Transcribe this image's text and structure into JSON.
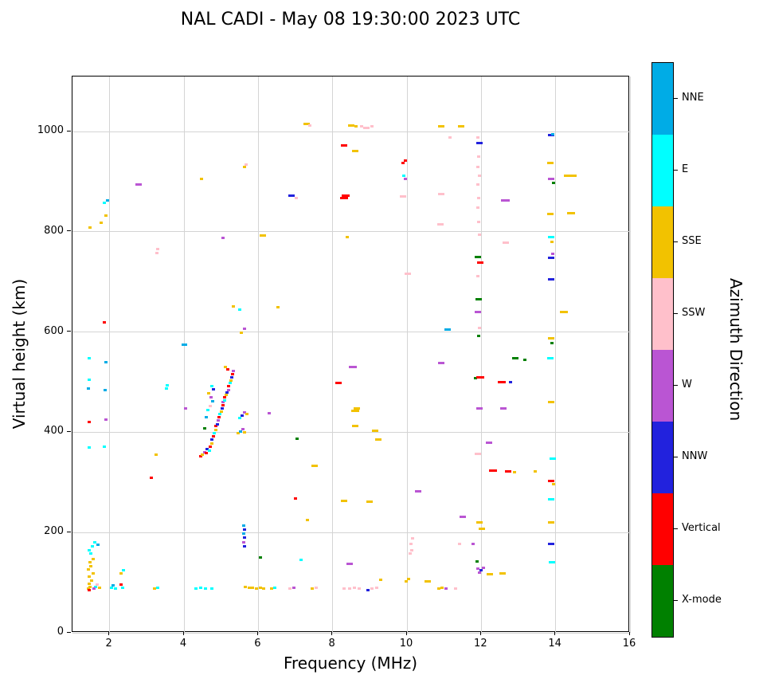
{
  "title": "NAL CADI - May 08 19:30:00 2023 UTC",
  "chart_data": {
    "type": "scatter",
    "title": "NAL CADI - May 08 19:30:00 2023 UTC",
    "xlabel": "Frequency (MHz)",
    "ylabel": "Virtual height (km)",
    "xlim": [
      1.0,
      16.0
    ],
    "ylim": [
      0,
      1110
    ],
    "xticks": [
      2,
      4,
      6,
      8,
      10,
      12,
      14,
      16
    ],
    "yticks": [
      0,
      200,
      400,
      600,
      800,
      1000
    ],
    "grid": true,
    "legend_position": "right-colorbar",
    "colorbar": {
      "label": "Azimuth Direction",
      "segments_bottom_to_top": [
        "X-mode",
        "Vertical",
        "NNW",
        "W",
        "SSW",
        "SSE",
        "E",
        "NNE"
      ],
      "colors": {
        "NNE": "#00ACE6",
        "E": "#00FFFF",
        "SSE": "#F2C200",
        "SSW": "#FFC0CB",
        "W": "#BA55D3",
        "NNW": "#2222DD",
        "Vertical": "#FF0000",
        "X-mode": "#008000"
      }
    },
    "point_codes": {
      "NNE": "NNE",
      "E": "E",
      "SSE": "SSE",
      "SSW": "SSW",
      "W": "W",
      "NNW": "NNW",
      "V": "Vertical",
      "X": "X-mode"
    },
    "points": [
      [
        1.42,
        88,
        "SSE"
      ],
      [
        1.48,
        92,
        "SSE"
      ],
      [
        1.45,
        98,
        "SSE"
      ],
      [
        1.52,
        104,
        "SSE"
      ],
      [
        1.46,
        112,
        "SSE"
      ],
      [
        1.55,
        118,
        "SSE"
      ],
      [
        1.43,
        126,
        "SSE"
      ],
      [
        1.5,
        133,
        "SSE"
      ],
      [
        1.47,
        140,
        "SSE"
      ],
      [
        1.56,
        147,
        "SSE"
      ],
      [
        1.62,
        92,
        "E"
      ],
      [
        1.58,
        88,
        "W"
      ],
      [
        1.44,
        85,
        "V"
      ],
      [
        1.66,
        96,
        "SSW"
      ],
      [
        1.72,
        90,
        "SSE"
      ],
      [
        1.5,
        158,
        "E"
      ],
      [
        1.46,
        165,
        "E"
      ],
      [
        1.53,
        172,
        "E"
      ],
      [
        1.6,
        180,
        "E"
      ],
      [
        1.68,
        176,
        "NNE"
      ],
      [
        1.45,
        370,
        "E"
      ],
      [
        1.85,
        372,
        "E"
      ],
      [
        1.44,
        420,
        "V"
      ],
      [
        1.9,
        425,
        "W"
      ],
      [
        1.42,
        488,
        "NNE"
      ],
      [
        1.88,
        485,
        "NNE"
      ],
      [
        1.46,
        505,
        "E"
      ],
      [
        1.9,
        540,
        "NNE"
      ],
      [
        1.44,
        548,
        "E"
      ],
      [
        1.86,
        620,
        "V"
      ],
      [
        1.48,
        808,
        "SSE"
      ],
      [
        1.78,
        818,
        "SSE"
      ],
      [
        1.9,
        832,
        "SSE"
      ],
      [
        1.86,
        858,
        "E"
      ],
      [
        1.95,
        862,
        "NNE"
      ],
      [
        2.05,
        90,
        "E"
      ],
      [
        2.1,
        95,
        "NNE"
      ],
      [
        2.16,
        88,
        "E"
      ],
      [
        2.3,
        96,
        "V"
      ],
      [
        2.34,
        90,
        "E"
      ],
      [
        2.3,
        118,
        "SSE"
      ],
      [
        2.38,
        125,
        "E"
      ],
      [
        2.78,
        895,
        "W",
        8
      ],
      [
        3.12,
        310,
        "V"
      ],
      [
        3.25,
        355,
        "SSE"
      ],
      [
        3.2,
        88,
        "SSE"
      ],
      [
        3.3,
        90,
        "E"
      ],
      [
        3.28,
        758,
        "SSW"
      ],
      [
        3.3,
        765,
        "SSW"
      ],
      [
        3.52,
        488,
        "E"
      ],
      [
        3.56,
        494,
        "E"
      ],
      [
        4.02,
        575,
        "NNE",
        7
      ],
      [
        4.05,
        448,
        "W"
      ],
      [
        4.32,
        88,
        "E"
      ],
      [
        4.45,
        90,
        "E"
      ],
      [
        4.58,
        88,
        "E"
      ],
      [
        4.75,
        88,
        "E"
      ],
      [
        4.48,
        905,
        "SSE"
      ],
      [
        4.45,
        352,
        "V"
      ],
      [
        4.5,
        356,
        "SSE"
      ],
      [
        4.55,
        360,
        "W"
      ],
      [
        4.6,
        358,
        "V"
      ],
      [
        4.62,
        366,
        "NNW"
      ],
      [
        4.68,
        364,
        "E"
      ],
      [
        4.7,
        372,
        "V"
      ],
      [
        4.74,
        378,
        "SSE"
      ],
      [
        4.76,
        386,
        "NNW"
      ],
      [
        4.8,
        392,
        "V"
      ],
      [
        4.82,
        398,
        "E"
      ],
      [
        4.85,
        404,
        "SSE"
      ],
      [
        4.86,
        412,
        "V"
      ],
      [
        4.9,
        416,
        "NNW"
      ],
      [
        4.92,
        424,
        "W"
      ],
      [
        4.95,
        430,
        "V"
      ],
      [
        4.96,
        436,
        "E"
      ],
      [
        5.0,
        442,
        "SSE"
      ],
      [
        5.02,
        448,
        "NNW"
      ],
      [
        5.05,
        454,
        "V"
      ],
      [
        5.06,
        460,
        "W"
      ],
      [
        5.1,
        464,
        "E"
      ],
      [
        5.1,
        470,
        "V"
      ],
      [
        5.14,
        474,
        "SSE"
      ],
      [
        5.16,
        480,
        "NNW"
      ],
      [
        5.2,
        484,
        "W"
      ],
      [
        5.2,
        492,
        "V"
      ],
      [
        5.24,
        498,
        "E"
      ],
      [
        5.26,
        504,
        "SSE"
      ],
      [
        5.28,
        510,
        "NNW"
      ],
      [
        5.3,
        516,
        "V"
      ],
      [
        5.33,
        522,
        "W"
      ],
      [
        5.18,
        526,
        "V"
      ],
      [
        5.12,
        530,
        "SSE"
      ],
      [
        4.55,
        408,
        "X"
      ],
      [
        4.6,
        430,
        "NNE"
      ],
      [
        4.65,
        445,
        "E"
      ],
      [
        4.7,
        452,
        "SSW"
      ],
      [
        4.78,
        462,
        "NNE"
      ],
      [
        4.72,
        470,
        "W"
      ],
      [
        4.66,
        478,
        "SSE"
      ],
      [
        4.8,
        486,
        "NNW"
      ],
      [
        4.74,
        492,
        "E"
      ],
      [
        5.45,
        398,
        "SSE"
      ],
      [
        5.52,
        402,
        "NNE"
      ],
      [
        5.58,
        406,
        "W"
      ],
      [
        5.63,
        400,
        "SSE"
      ],
      [
        5.5,
        428,
        "E"
      ],
      [
        5.56,
        434,
        "NNW"
      ],
      [
        5.62,
        440,
        "W"
      ],
      [
        5.7,
        436,
        "SSE"
      ],
      [
        5.62,
        172,
        "NNW"
      ],
      [
        5.6,
        180,
        "W"
      ],
      [
        5.63,
        190,
        "NNW"
      ],
      [
        5.61,
        198,
        "NNE"
      ],
      [
        5.62,
        206,
        "NNW"
      ],
      [
        5.6,
        214,
        "NNE"
      ],
      [
        6.05,
        150,
        "X"
      ],
      [
        5.95,
        88,
        "SSE"
      ],
      [
        5.85,
        90,
        "SSE"
      ],
      [
        5.75,
        90,
        "SSE"
      ],
      [
        5.65,
        92,
        "SSE"
      ],
      [
        6.05,
        90,
        "SSE"
      ],
      [
        6.15,
        88,
        "SSE"
      ],
      [
        6.35,
        88,
        "SSE"
      ],
      [
        6.45,
        90,
        "E"
      ],
      [
        6.85,
        88,
        "SSW"
      ],
      [
        6.95,
        90,
        "W"
      ],
      [
        7.15,
        145,
        "E"
      ],
      [
        5.55,
        598,
        "SSE"
      ],
      [
        5.62,
        606,
        "W"
      ],
      [
        5.5,
        645,
        "E"
      ],
      [
        5.32,
        652,
        "SSE"
      ],
      [
        5.05,
        788,
        "W"
      ],
      [
        5.62,
        930,
        "SSE"
      ],
      [
        5.68,
        935,
        "SSW"
      ],
      [
        6.12,
        792,
        "SSE",
        8
      ],
      [
        6.52,
        650,
        "SSE"
      ],
      [
        6.3,
        438,
        "W"
      ],
      [
        6.9,
        872,
        "NNW",
        8
      ],
      [
        7.02,
        868,
        "SSW"
      ],
      [
        7.3,
        1015,
        "SSE",
        8
      ],
      [
        7.38,
        1012,
        "SSW"
      ],
      [
        7.0,
        268,
        "V"
      ],
      [
        7.05,
        388,
        "X"
      ],
      [
        7.32,
        225,
        "SSE"
      ],
      [
        7.52,
        333,
        "SSE",
        8
      ],
      [
        7.45,
        88,
        "SSE"
      ],
      [
        7.55,
        90,
        "SSW"
      ],
      [
        8.15,
        498,
        "V",
        8
      ],
      [
        8.55,
        530,
        "W",
        10
      ],
      [
        8.3,
        263,
        "SSE",
        8
      ],
      [
        8.45,
        138,
        "W",
        8
      ],
      [
        8.3,
        868,
        "V",
        10
      ],
      [
        8.36,
        872,
        "V",
        10
      ],
      [
        8.3,
        973,
        "V",
        8
      ],
      [
        8.6,
        962,
        "SSE",
        8
      ],
      [
        8.5,
        1012,
        "SSE",
        8
      ],
      [
        8.62,
        1010,
        "SSE"
      ],
      [
        8.78,
        1010,
        "SSW"
      ],
      [
        8.9,
        1008,
        "SSW",
        8
      ],
      [
        9.05,
        1010,
        "SSW"
      ],
      [
        8.6,
        443,
        "SSE",
        10
      ],
      [
        8.66,
        448,
        "SSE",
        8
      ],
      [
        8.6,
        413,
        "SSE",
        8
      ],
      [
        8.4,
        790,
        "SSE"
      ],
      [
        9.15,
        403,
        "SSE",
        8
      ],
      [
        9.22,
        385,
        "SSE",
        8
      ],
      [
        9.0,
        262,
        "SSE",
        8
      ],
      [
        8.3,
        88,
        "SSW"
      ],
      [
        8.45,
        88,
        "SSW"
      ],
      [
        8.58,
        90,
        "SSW"
      ],
      [
        8.72,
        88,
        "SSW"
      ],
      [
        8.95,
        85,
        "NNW"
      ],
      [
        9.05,
        88,
        "SSW"
      ],
      [
        9.18,
        90,
        "SSW"
      ],
      [
        9.3,
        105,
        "SSE"
      ],
      [
        9.9,
        938,
        "V"
      ],
      [
        9.95,
        943,
        "V"
      ],
      [
        9.92,
        912,
        "E"
      ],
      [
        9.96,
        905,
        "W"
      ],
      [
        9.9,
        870,
        "SSW",
        8
      ],
      [
        10.02,
        716,
        "SSW",
        8
      ],
      [
        10.3,
        283,
        "W",
        8
      ],
      [
        10.08,
        158,
        "SSW"
      ],
      [
        10.12,
        165,
        "SSW"
      ],
      [
        10.1,
        178,
        "SSW"
      ],
      [
        10.15,
        188,
        "SSW"
      ],
      [
        10.55,
        103,
        "SSE",
        8
      ],
      [
        9.98,
        103,
        "SSE"
      ],
      [
        10.05,
        108,
        "SSE"
      ],
      [
        10.92,
        1010,
        "SSE",
        8
      ],
      [
        11.15,
        988,
        "SSW"
      ],
      [
        10.92,
        875,
        "SSW",
        8
      ],
      [
        10.9,
        815,
        "SSW",
        8
      ],
      [
        11.1,
        605,
        "NNE",
        8
      ],
      [
        10.92,
        538,
        "W",
        8
      ],
      [
        10.85,
        88,
        "SSE"
      ],
      [
        10.95,
        90,
        "SSE"
      ],
      [
        11.05,
        88,
        "W"
      ],
      [
        11.3,
        88,
        "SSW"
      ],
      [
        11.45,
        1010,
        "SSE",
        8
      ],
      [
        11.5,
        232,
        "W",
        8
      ],
      [
        11.42,
        178,
        "SSW"
      ],
      [
        11.78,
        178,
        "W"
      ],
      [
        11.9,
        988,
        "SSW"
      ],
      [
        11.96,
        978,
        "NNW",
        8
      ],
      [
        11.92,
        950,
        "SSW"
      ],
      [
        11.9,
        930,
        "SSW"
      ],
      [
        11.95,
        912,
        "SSW"
      ],
      [
        11.9,
        895,
        "SSW"
      ],
      [
        11.93,
        868,
        "SSW"
      ],
      [
        11.9,
        848,
        "SSW"
      ],
      [
        11.92,
        820,
        "SSW"
      ],
      [
        11.95,
        795,
        "SSW"
      ],
      [
        11.9,
        750,
        "X",
        8
      ],
      [
        11.98,
        738,
        "V",
        8
      ],
      [
        11.9,
        712,
        "SSW"
      ],
      [
        11.92,
        665,
        "X",
        8
      ],
      [
        11.9,
        640,
        "W",
        8
      ],
      [
        11.95,
        608,
        "SSW"
      ],
      [
        11.92,
        592,
        "X"
      ],
      [
        11.85,
        508,
        "X"
      ],
      [
        11.98,
        510,
        "V",
        10
      ],
      [
        11.95,
        447,
        "W",
        8
      ],
      [
        12.2,
        380,
        "W",
        8
      ],
      [
        11.9,
        357,
        "SSW",
        8
      ],
      [
        11.95,
        220,
        "SSE",
        8
      ],
      [
        12.02,
        207,
        "SSE",
        8
      ],
      [
        11.88,
        142,
        "X"
      ],
      [
        11.9,
        128,
        "W"
      ],
      [
        11.95,
        120,
        "W"
      ],
      [
        12.0,
        125,
        "NNW"
      ],
      [
        12.05,
        130,
        "W"
      ],
      [
        12.22,
        117,
        "SSE",
        8
      ],
      [
        12.58,
        118,
        "SSE",
        8
      ],
      [
        12.32,
        324,
        "V",
        10
      ],
      [
        12.72,
        322,
        "V",
        8
      ],
      [
        12.9,
        320,
        "SSE"
      ],
      [
        12.6,
        447,
        "W",
        8
      ],
      [
        12.55,
        500,
        "V",
        10
      ],
      [
        12.78,
        500,
        "NNW"
      ],
      [
        12.92,
        548,
        "X",
        8
      ],
      [
        13.18,
        545,
        "X"
      ],
      [
        12.65,
        778,
        "SSW",
        8
      ],
      [
        12.62,
        862,
        "W",
        8
      ],
      [
        12.72,
        862,
        "W"
      ],
      [
        13.45,
        322,
        "SSE"
      ],
      [
        13.88,
        993,
        "NNW",
        8
      ],
      [
        13.92,
        995,
        "NNE"
      ],
      [
        13.85,
        938,
        "SSE",
        8
      ],
      [
        13.88,
        905,
        "W",
        8
      ],
      [
        13.94,
        898,
        "X"
      ],
      [
        14.4,
        912,
        "SSE",
        16
      ],
      [
        13.85,
        835,
        "SSE",
        8
      ],
      [
        14.42,
        838,
        "SSE",
        10
      ],
      [
        13.88,
        790,
        "E",
        8
      ],
      [
        13.9,
        780,
        "SSE"
      ],
      [
        13.88,
        748,
        "NNW",
        8
      ],
      [
        13.92,
        756,
        "W"
      ],
      [
        13.88,
        706,
        "NNW",
        8
      ],
      [
        14.22,
        640,
        "SSE",
        10
      ],
      [
        13.88,
        588,
        "SSE",
        8
      ],
      [
        13.9,
        578,
        "X"
      ],
      [
        13.85,
        548,
        "E",
        8
      ],
      [
        13.88,
        460,
        "SSE",
        8
      ],
      [
        13.92,
        348,
        "E",
        8
      ],
      [
        13.88,
        303,
        "V",
        8
      ],
      [
        13.94,
        297,
        "SSE"
      ],
      [
        13.88,
        266,
        "E",
        8
      ],
      [
        13.88,
        220,
        "SSE",
        8
      ],
      [
        13.88,
        178,
        "NNW",
        8
      ],
      [
        13.9,
        140,
        "E",
        8
      ]
    ]
  }
}
